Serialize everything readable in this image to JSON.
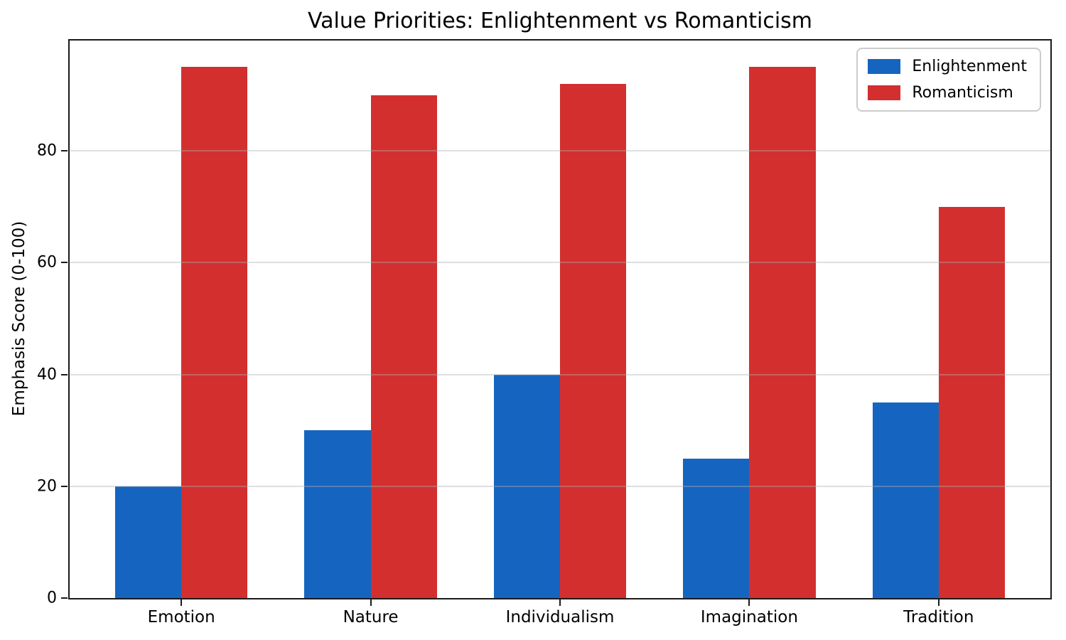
{
  "chart_data": {
    "type": "bar",
    "title": "Value Priorities: Enlightenment vs Romanticism",
    "xlabel": "",
    "ylabel": "Emphasis Score (0-100)",
    "categories": [
      "Emotion",
      "Nature",
      "Individualism",
      "Imagination",
      "Tradition"
    ],
    "series": [
      {
        "name": "Enlightenment",
        "color": "#1565C0",
        "values": [
          20,
          30,
          40,
          25,
          35
        ]
      },
      {
        "name": "Romanticism",
        "color": "#D32F2F",
        "values": [
          95,
          90,
          92,
          95,
          70
        ]
      }
    ],
    "yticks": [
      0,
      20,
      40,
      60,
      80
    ],
    "ylim": [
      0,
      99.75
    ],
    "bar_width_units": 0.35,
    "x_edge_padding_units": 0.59,
    "grid": "horizontal",
    "grid_over_bars": true,
    "legend_position": "upper right",
    "colors": {
      "spine": "#1a1a1a",
      "gridline": "#b0b0b0",
      "background": "#ffffff",
      "text": "#000000"
    }
  }
}
